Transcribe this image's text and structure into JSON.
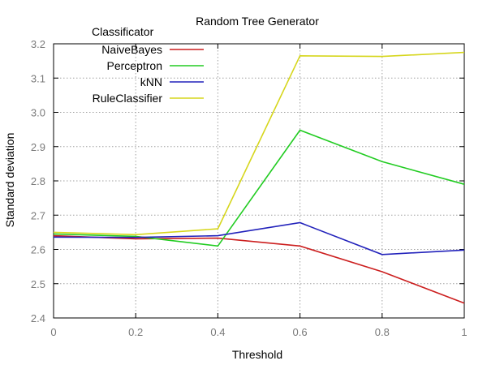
{
  "chart_data": {
    "type": "line",
    "title": "Random Tree Generator",
    "xlabel": "Threshold",
    "ylabel": "Standard deviation",
    "xlim": [
      0,
      1
    ],
    "ylim": [
      2.4,
      3.2
    ],
    "x_ticks": [
      "0",
      "0.2",
      "0.4",
      "0.6",
      "0.8",
      "1"
    ],
    "y_ticks": [
      "2.4",
      "2.5",
      "2.6",
      "2.7",
      "2.8",
      "2.9",
      "3.0",
      "3.1",
      "3.2"
    ],
    "grid": true,
    "legend": {
      "title": "Classificator",
      "placement": "top-left"
    },
    "x": [
      0,
      0.2,
      0.4,
      0.6,
      0.8,
      1.0
    ],
    "series": [
      {
        "name": "NaiveBayes",
        "color": "#cc1f1f",
        "values": [
          2.64,
          2.631,
          2.633,
          2.61,
          2.535,
          2.443
        ]
      },
      {
        "name": "Perceptron",
        "color": "#22cc22",
        "values": [
          2.645,
          2.638,
          2.61,
          2.948,
          2.856,
          2.79
        ]
      },
      {
        "name": "kNN",
        "color": "#2222bb",
        "values": [
          2.636,
          2.635,
          2.64,
          2.678,
          2.585,
          2.598
        ]
      },
      {
        "name": "RuleClassifier",
        "color": "#d6d61c",
        "values": [
          2.65,
          2.643,
          2.66,
          3.165,
          3.163,
          3.175
        ]
      }
    ]
  }
}
